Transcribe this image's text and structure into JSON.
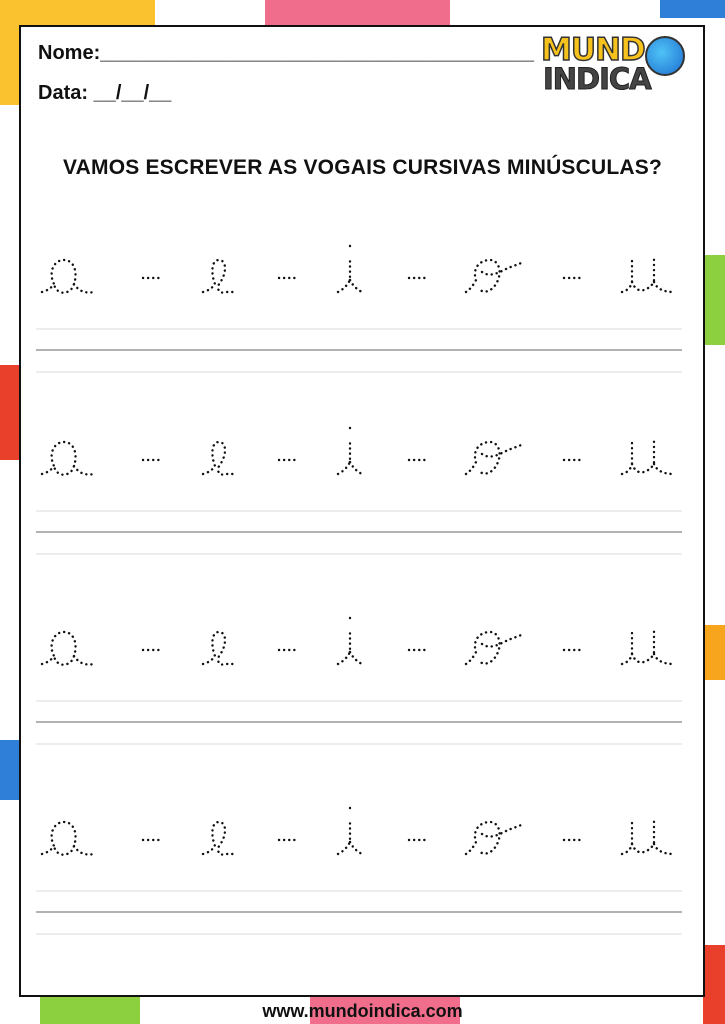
{
  "header": {
    "name_label": "Nome:_______________________________________",
    "date_label": "Data: __/__/__",
    "logo": {
      "line1": "MUNDO",
      "line2": "INDICA"
    }
  },
  "title": "VAMOS ESCREVER AS VOGAIS CURSIVAS MINÚSCULAS?",
  "rows": [
    {
      "letters": [
        "a",
        "e",
        "i",
        "o",
        "u"
      ]
    },
    {
      "letters": [
        "a",
        "e",
        "i",
        "o",
        "u"
      ]
    },
    {
      "letters": [
        "a",
        "e",
        "i",
        "o",
        "u"
      ]
    },
    {
      "letters": [
        "a",
        "e",
        "i",
        "o",
        "u"
      ]
    }
  ],
  "footer": "www.mundoindica.com",
  "colors": {
    "yellow": "#f9c22e",
    "pink": "#f06e8c",
    "green": "#8ccf3f",
    "red": "#e8402a",
    "blue": "#2f7fd8",
    "orange": "#f7a51c"
  }
}
